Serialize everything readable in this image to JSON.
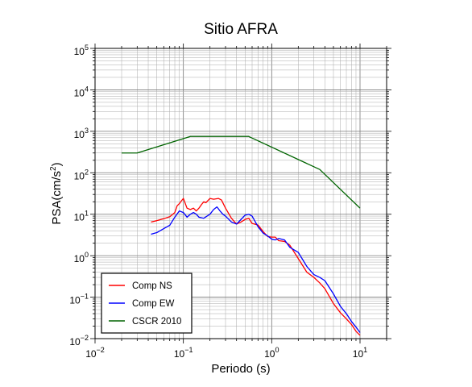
{
  "chart_data": {
    "type": "line",
    "title": "Sitio AFRA",
    "xlabel": "Periodo (s)",
    "ylabel": {
      "base": "PSA(cm/s",
      "sup": "2",
      "close": ")"
    },
    "x_scale": "log",
    "y_scale": "log",
    "xlim": [
      0.01,
      20
    ],
    "ylim": [
      0.01,
      100000
    ],
    "grid": true,
    "legend_position": "bottom-left",
    "x_ticks": [
      {
        "value": 0.01,
        "base": "10",
        "exp": "−2"
      },
      {
        "value": 0.1,
        "base": "10",
        "exp": "−1"
      },
      {
        "value": 1,
        "base": "10",
        "exp": "0"
      },
      {
        "value": 10,
        "base": "10",
        "exp": "1"
      }
    ],
    "y_ticks": [
      {
        "value": 0.01,
        "base": "10",
        "exp": "−2"
      },
      {
        "value": 0.1,
        "base": "10",
        "exp": "−1"
      },
      {
        "value": 1,
        "base": "10",
        "exp": "0"
      },
      {
        "value": 10,
        "base": "10",
        "exp": "1"
      },
      {
        "value": 100,
        "base": "10",
        "exp": "2"
      },
      {
        "value": 1000,
        "base": "10",
        "exp": "3"
      },
      {
        "value": 10000,
        "base": "10",
        "exp": "4"
      },
      {
        "value": 100000,
        "base": "10",
        "exp": "5"
      }
    ],
    "series": [
      {
        "name": "Comp NS",
        "color": "#ff0000",
        "points": [
          [
            0.043,
            6.5
          ],
          [
            0.05,
            7.0
          ],
          [
            0.06,
            7.8
          ],
          [
            0.07,
            8.7
          ],
          [
            0.08,
            11
          ],
          [
            0.085,
            16
          ],
          [
            0.09,
            18
          ],
          [
            0.095,
            21
          ],
          [
            0.1,
            24
          ],
          [
            0.11,
            14
          ],
          [
            0.12,
            13
          ],
          [
            0.13,
            14
          ],
          [
            0.14,
            12
          ],
          [
            0.15,
            14
          ],
          [
            0.16,
            17
          ],
          [
            0.17,
            20
          ],
          [
            0.18,
            19
          ],
          [
            0.2,
            24
          ],
          [
            0.22,
            23
          ],
          [
            0.25,
            24
          ],
          [
            0.27,
            22
          ],
          [
            0.3,
            14
          ],
          [
            0.35,
            8
          ],
          [
            0.4,
            5.8
          ],
          [
            0.45,
            6.5
          ],
          [
            0.5,
            7.5
          ],
          [
            0.55,
            8.0
          ],
          [
            0.6,
            6.0
          ],
          [
            0.7,
            5.5
          ],
          [
            0.8,
            3.8
          ],
          [
            0.9,
            2.9
          ],
          [
            1.0,
            2.8
          ],
          [
            1.1,
            2.8
          ],
          [
            1.2,
            2.3
          ],
          [
            1.4,
            2.2
          ],
          [
            1.6,
            1.8
          ],
          [
            2.0,
            0.85
          ],
          [
            2.5,
            0.4
          ],
          [
            3.0,
            0.3
          ],
          [
            3.5,
            0.22
          ],
          [
            4.0,
            0.16
          ],
          [
            5.0,
            0.07
          ],
          [
            6.0,
            0.042
          ],
          [
            7.0,
            0.03
          ],
          [
            8.0,
            0.022
          ],
          [
            9.0,
            0.015
          ],
          [
            10.0,
            0.012
          ]
        ]
      },
      {
        "name": "Comp EW",
        "color": "#0000ff",
        "points": [
          [
            0.043,
            3.3
          ],
          [
            0.05,
            3.6
          ],
          [
            0.06,
            4.5
          ],
          [
            0.07,
            5.4
          ],
          [
            0.08,
            8.5
          ],
          [
            0.09,
            12
          ],
          [
            0.1,
            11
          ],
          [
            0.11,
            8.5
          ],
          [
            0.12,
            10
          ],
          [
            0.13,
            11
          ],
          [
            0.14,
            10
          ],
          [
            0.15,
            8.5
          ],
          [
            0.17,
            8.0
          ],
          [
            0.2,
            10
          ],
          [
            0.22,
            13
          ],
          [
            0.24,
            15
          ],
          [
            0.26,
            12
          ],
          [
            0.28,
            10
          ],
          [
            0.3,
            9.0
          ],
          [
            0.35,
            6.5
          ],
          [
            0.4,
            5.8
          ],
          [
            0.45,
            7.5
          ],
          [
            0.5,
            9.5
          ],
          [
            0.55,
            10
          ],
          [
            0.6,
            9.0
          ],
          [
            0.7,
            5.0
          ],
          [
            0.8,
            3.5
          ],
          [
            0.9,
            3.0
          ],
          [
            1.0,
            2.5
          ],
          [
            1.1,
            2.4
          ],
          [
            1.2,
            2.6
          ],
          [
            1.4,
            2.4
          ],
          [
            1.6,
            1.6
          ],
          [
            2.0,
            1.2
          ],
          [
            2.5,
            0.55
          ],
          [
            3.0,
            0.35
          ],
          [
            3.5,
            0.3
          ],
          [
            4.0,
            0.25
          ],
          [
            5.0,
            0.12
          ],
          [
            6.0,
            0.06
          ],
          [
            7.0,
            0.04
          ],
          [
            8.0,
            0.026
          ],
          [
            9.0,
            0.019
          ],
          [
            10.0,
            0.014
          ]
        ]
      },
      {
        "name": "CSCR 2010",
        "color": "#006400",
        "points": [
          [
            0.02,
            300
          ],
          [
            0.03,
            300
          ],
          [
            0.12,
            750
          ],
          [
            0.55,
            750
          ],
          [
            3.5,
            120
          ],
          [
            10.0,
            14
          ]
        ]
      }
    ]
  }
}
